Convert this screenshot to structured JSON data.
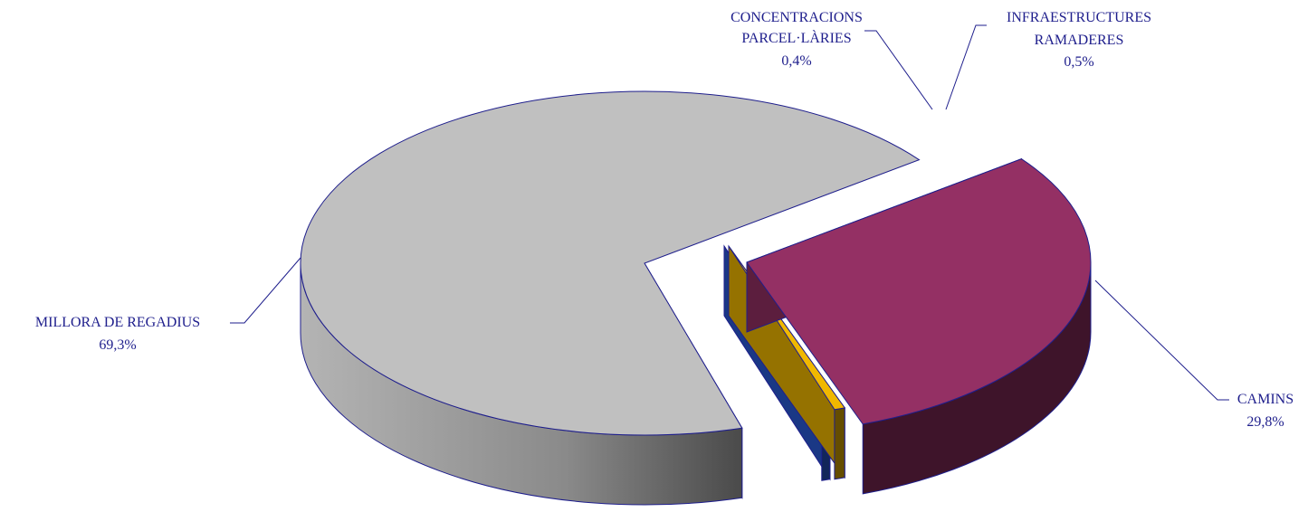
{
  "chart_data": {
    "type": "pie",
    "title": "",
    "slices": [
      {
        "label": "MILLORA DE REGADIUS",
        "value": 69.3,
        "value_label": "69,3%",
        "color": "#c0c0c0"
      },
      {
        "label": "CONCENTRACIONS PARCEL·LÀRIES",
        "value": 0.4,
        "value_label": "0,4%",
        "color": "#2a5bd7"
      },
      {
        "label": "INFRAESTRUCTURES RAMADERES",
        "value": 0.5,
        "value_label": "0,5%",
        "color": "#f0b800"
      },
      {
        "label": "CAMINS",
        "value": 29.8,
        "value_label": "29,8%",
        "color": "#943064"
      }
    ],
    "legend": "none",
    "three_d": true,
    "exploded": true,
    "outline_color": "#1e1e8c"
  }
}
